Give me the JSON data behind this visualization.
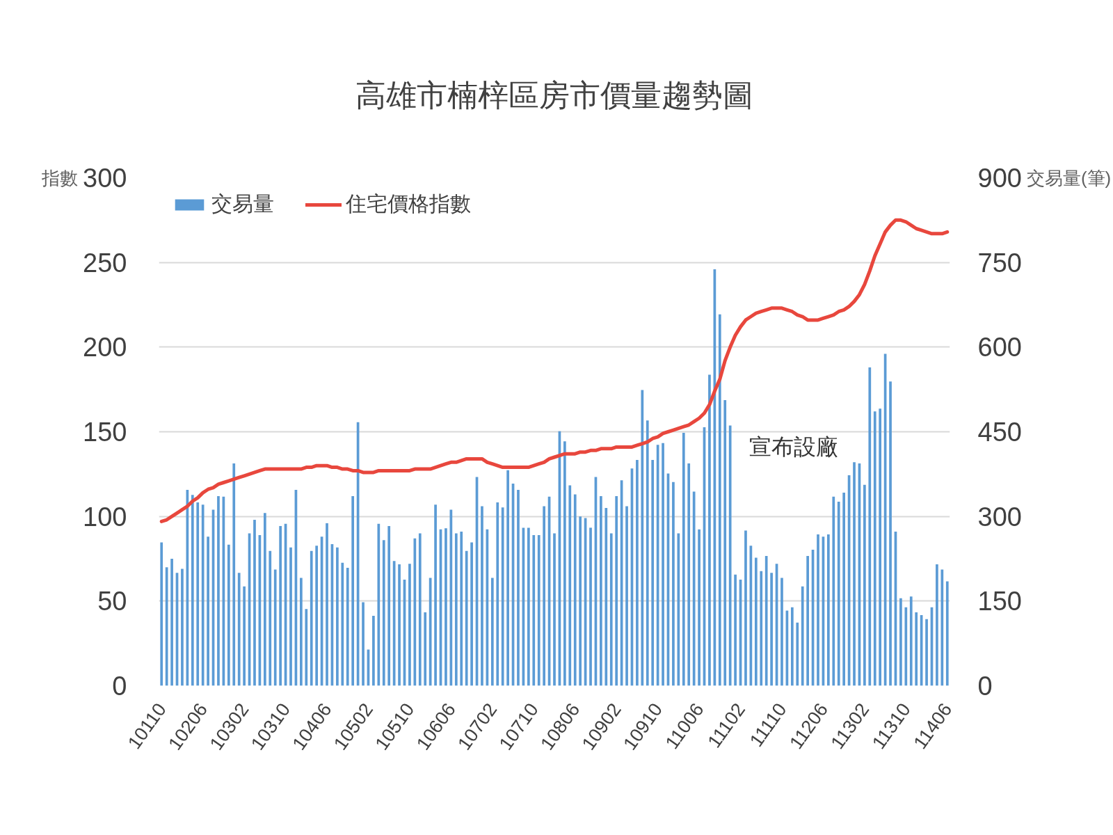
{
  "chart_data": {
    "type": "bar",
    "title": "高雄市楠梓區房市價量趨勢圖",
    "ylabel": "指數",
    "y2label": "交易量(筆)",
    "categories": [
      "10110",
      null,
      null,
      null,
      null,
      null,
      null,
      null,
      "10206",
      null,
      null,
      null,
      null,
      null,
      null,
      null,
      "10302",
      null,
      null,
      null,
      null,
      null,
      null,
      null,
      "10310",
      null,
      null,
      null,
      null,
      null,
      null,
      null,
      "10406",
      null,
      null,
      null,
      null,
      null,
      null,
      null,
      "10502",
      null,
      null,
      null,
      null,
      null,
      null,
      null,
      "10510",
      null,
      null,
      null,
      null,
      null,
      null,
      null,
      "10606",
      null,
      null,
      null,
      null,
      null,
      null,
      null,
      "10702",
      null,
      null,
      null,
      null,
      null,
      null,
      null,
      "10710",
      null,
      null,
      null,
      null,
      null,
      null,
      null,
      "10806",
      null,
      null,
      null,
      null,
      null,
      null,
      null,
      "10902",
      null,
      null,
      null,
      null,
      null,
      null,
      null,
      "10910",
      null,
      null,
      null,
      null,
      null,
      null,
      null,
      "11006",
      null,
      null,
      null,
      null,
      null,
      null,
      null,
      "11102",
      null,
      null,
      null,
      null,
      null,
      null,
      null,
      "11110",
      null,
      null,
      null,
      null,
      null,
      null,
      null,
      "11206",
      null,
      null,
      null,
      null,
      null,
      null,
      null,
      "11302",
      null,
      null,
      null,
      null,
      null,
      null,
      null,
      "11310",
      null,
      null,
      null,
      null,
      null,
      null,
      null,
      "11406"
    ],
    "series": [
      {
        "name": "交易量",
        "axis": "y2",
        "color": "#5b9bd5",
        "values": [
          254,
          210,
          225,
          200,
          207,
          347,
          338,
          325,
          321,
          264,
          312,
          336,
          335,
          250,
          394,
          200,
          176,
          270,
          294,
          267,
          306,
          239,
          206,
          283,
          287,
          245,
          347,
          191,
          136,
          239,
          248,
          264,
          288,
          251,
          245,
          218,
          209,
          336,
          467,
          148,
          64,
          124,
          287,
          258,
          283,
          221,
          215,
          188,
          216,
          261,
          270,
          130,
          191,
          321,
          277,
          279,
          312,
          270,
          273,
          239,
          254,
          370,
          318,
          277,
          191,
          325,
          316,
          382,
          358,
          347,
          280,
          280,
          267,
          267,
          318,
          335,
          270,
          451,
          433,
          355,
          339,
          300,
          297,
          280,
          370,
          336,
          315,
          270,
          336,
          364,
          318,
          385,
          400,
          524,
          470,
          400,
          427,
          430,
          376,
          361,
          270,
          448,
          394,
          344,
          277,
          458,
          551,
          738,
          658,
          506,
          461,
          197,
          188,
          275,
          248,
          227,
          203,
          230,
          200,
          216,
          191,
          133,
          139,
          112,
          176,
          230,
          241,
          268,
          264,
          268,
          335,
          326,
          342,
          373,
          396,
          394,
          356,
          564,
          486,
          491,
          588,
          539,
          273,
          155,
          139,
          158,
          130,
          125,
          118,
          139,
          215,
          206,
          185
        ]
      },
      {
        "name": "住宅價格指數",
        "type": "line",
        "color": "#e8473d",
        "values": [
          97,
          98,
          100,
          102,
          104,
          106,
          109,
          111,
          114,
          116,
          117,
          119,
          120,
          121,
          122,
          123,
          124,
          125,
          126,
          127,
          128,
          128,
          128,
          128,
          128,
          128,
          128,
          128,
          129,
          129,
          130,
          130,
          130,
          129,
          129,
          128,
          128,
          127,
          127,
          126,
          126,
          126,
          127,
          127,
          127,
          127,
          127,
          127,
          127,
          128,
          128,
          128,
          128,
          129,
          130,
          131,
          132,
          132,
          133,
          134,
          134,
          134,
          134,
          132,
          131,
          130,
          129,
          129,
          129,
          129,
          129,
          129,
          130,
          131,
          132,
          134,
          135,
          136,
          137,
          137,
          137,
          138,
          138,
          139,
          139,
          140,
          140,
          140,
          141,
          141,
          141,
          141,
          142,
          143,
          144,
          146,
          147,
          149,
          150,
          151,
          152,
          153,
          154,
          156,
          158,
          161,
          166,
          174,
          181,
          192,
          200,
          207,
          212,
          216,
          218,
          220,
          221,
          222,
          223,
          223,
          223,
          222,
          221,
          219,
          218,
          216,
          216,
          216,
          217,
          218,
          219,
          221,
          222,
          224,
          227,
          231,
          237,
          245,
          254,
          261,
          268,
          272,
          275,
          275,
          274,
          272,
          270,
          269,
          268,
          267,
          267,
          267,
          268
        ]
      }
    ],
    "ylim": [
      0,
      300
    ],
    "yticks": [
      0,
      50,
      100,
      150,
      200,
      250,
      300
    ],
    "y2lim": [
      0,
      900
    ],
    "y2ticks": [
      0,
      150,
      300,
      450,
      600,
      750,
      900
    ],
    "grid": "y",
    "legend": "top left",
    "annotations": [
      "宣布設廠"
    ]
  }
}
